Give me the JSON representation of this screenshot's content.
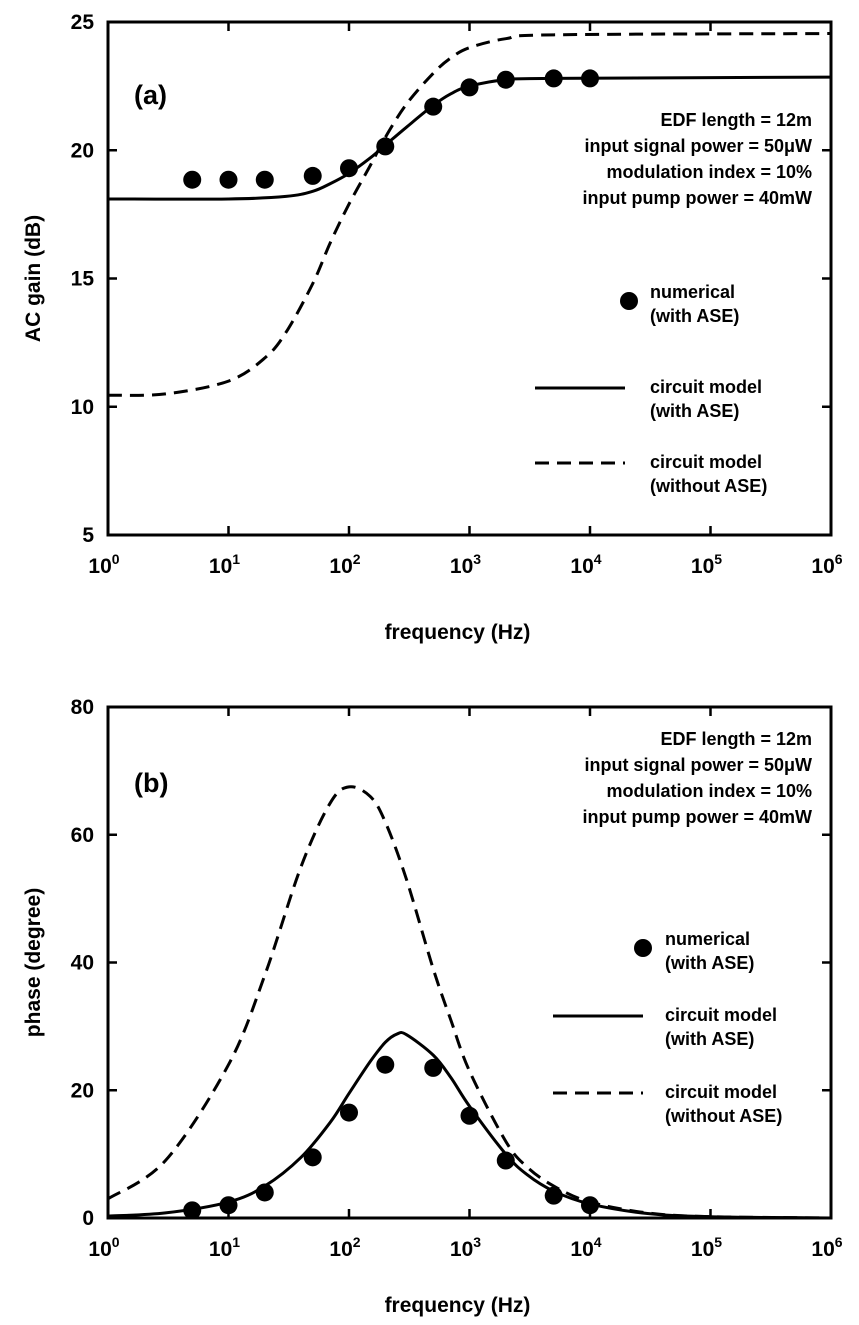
{
  "charts": [
    {
      "panel_label": "(a)",
      "type": "line",
      "xlabel": "frequency (Hz)",
      "ylabel": "AC gain (dB)",
      "xscale": "log",
      "xlim": [
        1,
        1000000
      ],
      "ylim": [
        5,
        25
      ],
      "x_tick_labels": [
        {
          "base": "10",
          "exp": "0"
        },
        {
          "base": "10",
          "exp": "1"
        },
        {
          "base": "10",
          "exp": "2"
        },
        {
          "base": "10",
          "exp": "3"
        },
        {
          "base": "10",
          "exp": "4"
        },
        {
          "base": "10",
          "exp": "5"
        },
        {
          "base": "10",
          "exp": "6"
        }
      ],
      "y_tick_labels": [
        "5",
        "10",
        "15",
        "20",
        "25"
      ],
      "annotations": [
        "EDF length = 12m",
        "input signal power = 50μW",
        "modulation index = 10%",
        "input pump power = 40mW"
      ],
      "legend": [
        {
          "style": "marker",
          "lines": [
            "numerical",
            "(with ASE)"
          ]
        },
        {
          "style": "solid",
          "lines": [
            "circuit model",
            "(with ASE)"
          ]
        },
        {
          "style": "dashed",
          "lines": [
            "circuit model",
            "(without ASE)"
          ]
        }
      ],
      "series": [
        {
          "style": "marker",
          "x": [
            5,
            10,
            20,
            50,
            100,
            200,
            500,
            1000,
            2000,
            5000,
            10000
          ],
          "y": [
            18.85,
            18.85,
            18.85,
            19.0,
            19.3,
            20.15,
            21.7,
            22.45,
            22.75,
            22.8,
            22.8
          ]
        },
        {
          "style": "solid",
          "x": [
            1,
            10,
            30,
            50,
            70,
            100,
            150,
            200,
            300,
            500,
            700,
            1000,
            2000,
            5000,
            1000000
          ],
          "y": [
            18.1,
            18.1,
            18.2,
            18.4,
            18.7,
            19.1,
            19.7,
            20.2,
            20.9,
            21.75,
            22.2,
            22.5,
            22.75,
            22.8,
            22.85
          ]
        },
        {
          "style": "dashed",
          "x": [
            1,
            3,
            10,
            20,
            30,
            50,
            70,
            100,
            150,
            200,
            300,
            500,
            700,
            1000,
            2000,
            5000,
            1000000
          ],
          "y": [
            10.45,
            10.5,
            11.0,
            11.9,
            12.9,
            14.8,
            16.4,
            17.9,
            19.4,
            20.5,
            21.8,
            23.0,
            23.6,
            24.0,
            24.35,
            24.5,
            24.55
          ]
        }
      ]
    },
    {
      "panel_label": "(b)",
      "type": "line",
      "xlabel": "frequency (Hz)",
      "ylabel": "phase (degree)",
      "xscale": "log",
      "xlim": [
        1,
        1000000
      ],
      "ylim": [
        0,
        80
      ],
      "x_tick_labels": [
        {
          "base": "10",
          "exp": "0"
        },
        {
          "base": "10",
          "exp": "1"
        },
        {
          "base": "10",
          "exp": "2"
        },
        {
          "base": "10",
          "exp": "3"
        },
        {
          "base": "10",
          "exp": "4"
        },
        {
          "base": "10",
          "exp": "5"
        },
        {
          "base": "10",
          "exp": "6"
        }
      ],
      "y_tick_labels": [
        "0",
        "20",
        "40",
        "60",
        "80"
      ],
      "annotations": [
        "EDF length = 12m",
        "input signal power = 50μW",
        "modulation index = 10%",
        "input pump power = 40mW"
      ],
      "legend": [
        {
          "style": "marker",
          "lines": [
            "numerical",
            "(with ASE)"
          ]
        },
        {
          "style": "solid",
          "lines": [
            "circuit model",
            "(with ASE)"
          ]
        },
        {
          "style": "dashed",
          "lines": [
            "circuit model",
            "(without ASE)"
          ]
        }
      ],
      "series": [
        {
          "style": "marker",
          "x": [
            5,
            10,
            20,
            50,
            100,
            200,
            500,
            1000,
            2000,
            5000,
            10000
          ],
          "y": [
            1.2,
            2.0,
            4.0,
            9.5,
            16.5,
            24.0,
            23.5,
            16.0,
            9.0,
            3.5,
            2.0
          ]
        },
        {
          "style": "solid",
          "x": [
            1,
            3,
            10,
            20,
            40,
            70,
            100,
            150,
            200,
            250,
            300,
            500,
            700,
            1000,
            2000,
            3000,
            5000,
            10000,
            30000,
            100000,
            1000000
          ],
          "y": [
            0.3,
            0.8,
            2.5,
            5.0,
            9.5,
            15.0,
            19.5,
            24.5,
            27.5,
            28.8,
            28.7,
            25.5,
            22.0,
            17.5,
            10.0,
            6.8,
            4.2,
            2.2,
            0.7,
            0.2,
            0.0
          ]
        },
        {
          "style": "dashed",
          "x": [
            1,
            3,
            10,
            20,
            40,
            70,
            100,
            150,
            200,
            300,
            500,
            700,
            1000,
            2000,
            3000,
            5000,
            10000,
            30000,
            100000,
            1000000
          ],
          "y": [
            3.0,
            9.0,
            24.0,
            38.0,
            55.0,
            65.0,
            67.5,
            66.0,
            62.0,
            53.0,
            39.0,
            31.0,
            23.0,
            12.0,
            8.0,
            5.0,
            2.5,
            0.8,
            0.2,
            0.0
          ]
        }
      ]
    }
  ]
}
